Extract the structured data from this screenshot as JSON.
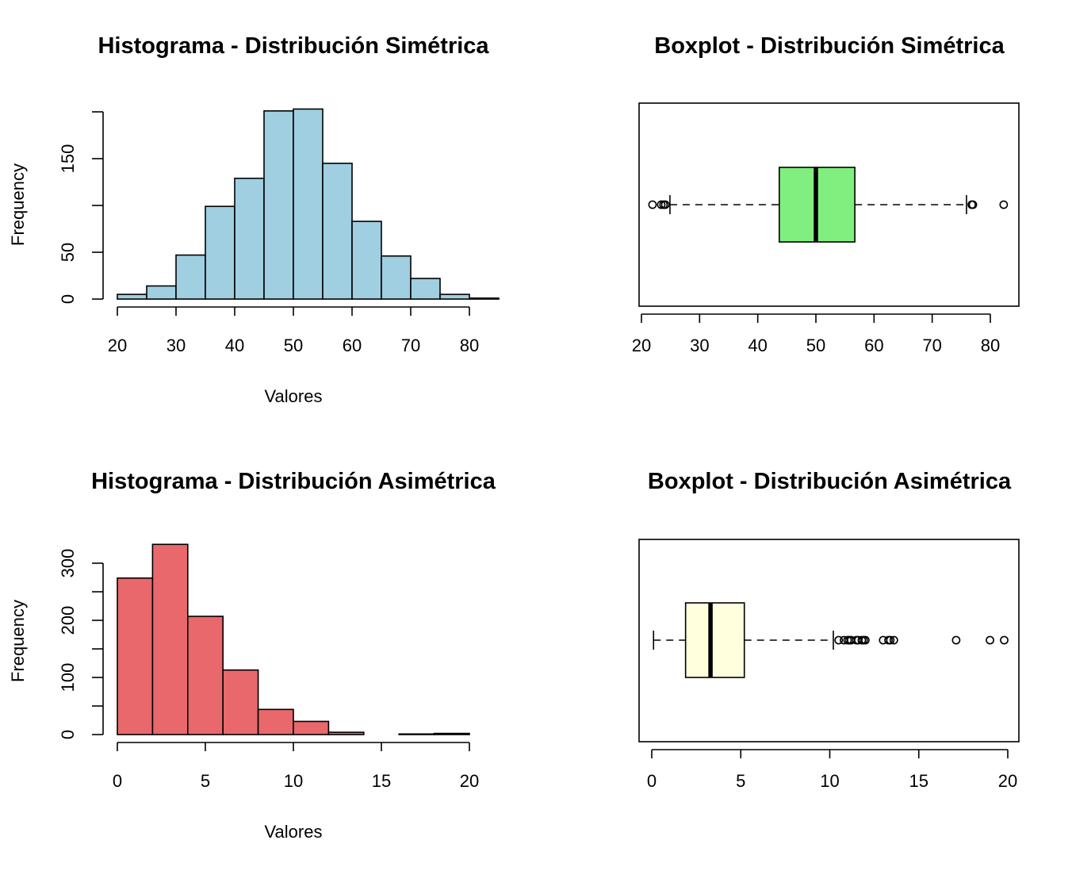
{
  "chart_data": [
    {
      "type": "histogram",
      "title": "Histograma - Distribución Simétrica",
      "xlabel": "Valores",
      "ylabel": "Frequency",
      "bin_edges": [
        20,
        25,
        30,
        35,
        40,
        45,
        50,
        55,
        60,
        65,
        70,
        75,
        80,
        85
      ],
      "counts": [
        5,
        14,
        47,
        99,
        129,
        201,
        203,
        145,
        83,
        46,
        22,
        5,
        1
      ],
      "xticks": [
        20,
        30,
        40,
        50,
        60,
        70,
        80
      ],
      "yticks": [
        0,
        50,
        100,
        150,
        200
      ],
      "ytick_labels": [
        "0",
        "50",
        "",
        "150",
        ""
      ],
      "xlim": [
        20,
        85
      ],
      "ylim": [
        0,
        203
      ],
      "bar_color": "#9fcfe0",
      "grid": false
    },
    {
      "type": "boxplot",
      "title": "Boxplot - Distribución Simétrica",
      "orientation": "horizontal",
      "whisker_low": 24.9,
      "q1": 43.7,
      "median": 50.0,
      "q3": 56.7,
      "whisker_high": 75.9,
      "outliers": [
        21.9,
        23.4,
        23.8,
        24.1,
        76.8,
        77.0,
        82.3
      ],
      "xticks": [
        20,
        30,
        40,
        50,
        60,
        70,
        80
      ],
      "xlim": [
        21.9,
        82.3
      ],
      "box_color": "#80ef80",
      "grid": false
    },
    {
      "type": "histogram",
      "title": "Histograma - Distribución Asimétrica",
      "xlabel": "Valores",
      "ylabel": "Frequency",
      "bin_edges": [
        0,
        2,
        4,
        6,
        8,
        10,
        12,
        14,
        16,
        18,
        20
      ],
      "counts": [
        274,
        333,
        207,
        113,
        44,
        23,
        4,
        0,
        1,
        2
      ],
      "xticks": [
        0,
        5,
        10,
        15,
        20
      ],
      "yticks": [
        0,
        50,
        100,
        150,
        200,
        250,
        300
      ],
      "ytick_labels": [
        "0",
        "",
        "100",
        "",
        "200",
        "",
        "300"
      ],
      "xlim": [
        0,
        20
      ],
      "ylim": [
        0,
        333
      ],
      "bar_color": "#e8686c",
      "grid": false
    },
    {
      "type": "boxplot",
      "title": "Boxplot - Distribución Asimétrica",
      "orientation": "horizontal",
      "whisker_low": 0.1,
      "q1": 1.9,
      "median": 3.3,
      "q3": 5.2,
      "whisker_high": 10.2,
      "outliers": [
        10.5,
        10.8,
        11.0,
        11.1,
        11.2,
        11.5,
        11.6,
        11.8,
        11.9,
        12.0,
        13.0,
        13.3,
        13.4,
        13.6,
        17.1,
        19.0,
        19.8
      ],
      "xticks": [
        0,
        5,
        10,
        15,
        20
      ],
      "xlim": [
        0.1,
        19.8
      ],
      "box_color": "#ffffdd",
      "grid": false
    }
  ]
}
